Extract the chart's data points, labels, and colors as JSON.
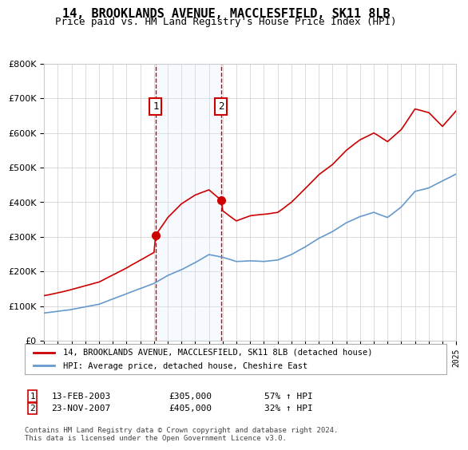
{
  "title": "14, BROOKLANDS AVENUE, MACCLESFIELD, SK11 8LB",
  "subtitle": "Price paid vs. HM Land Registry's House Price Index (HPI)",
  "sale1_date": "2003-02-13",
  "sale1_price": 305000,
  "sale1_label": "1",
  "sale1_pct": "57% ↑ HPI",
  "sale2_date": "2007-11-23",
  "sale2_price": 405000,
  "sale2_label": "2",
  "sale2_pct": "32% ↑ HPI",
  "legend_red": "14, BROOKLANDS AVENUE, MACCLESFIELD, SK11 8LB (detached house)",
  "legend_blue": "HPI: Average price, detached house, Cheshire East",
  "table_row1": "13-FEB-2003     £305,000     57% ↑ HPI",
  "table_row2": "23-NOV-2007     £405,000     32% ↑ HPI",
  "footer": "Contains HM Land Registry data © Crown copyright and database right 2024.\nThis data is licensed under the Open Government Licence v3.0.",
  "ylim": [
    0,
    800000
  ],
  "yticks": [
    0,
    100000,
    200000,
    300000,
    400000,
    500000,
    600000,
    700000,
    800000
  ],
  "red_color": "#cc0000",
  "blue_color": "#6699cc",
  "shade_color": "#ddeeff",
  "grid_color": "#cccccc",
  "bg_color": "#ffffff",
  "sale1_x": 2003.12,
  "sale2_x": 2007.9,
  "xmin": 1995,
  "xmax": 2025
}
